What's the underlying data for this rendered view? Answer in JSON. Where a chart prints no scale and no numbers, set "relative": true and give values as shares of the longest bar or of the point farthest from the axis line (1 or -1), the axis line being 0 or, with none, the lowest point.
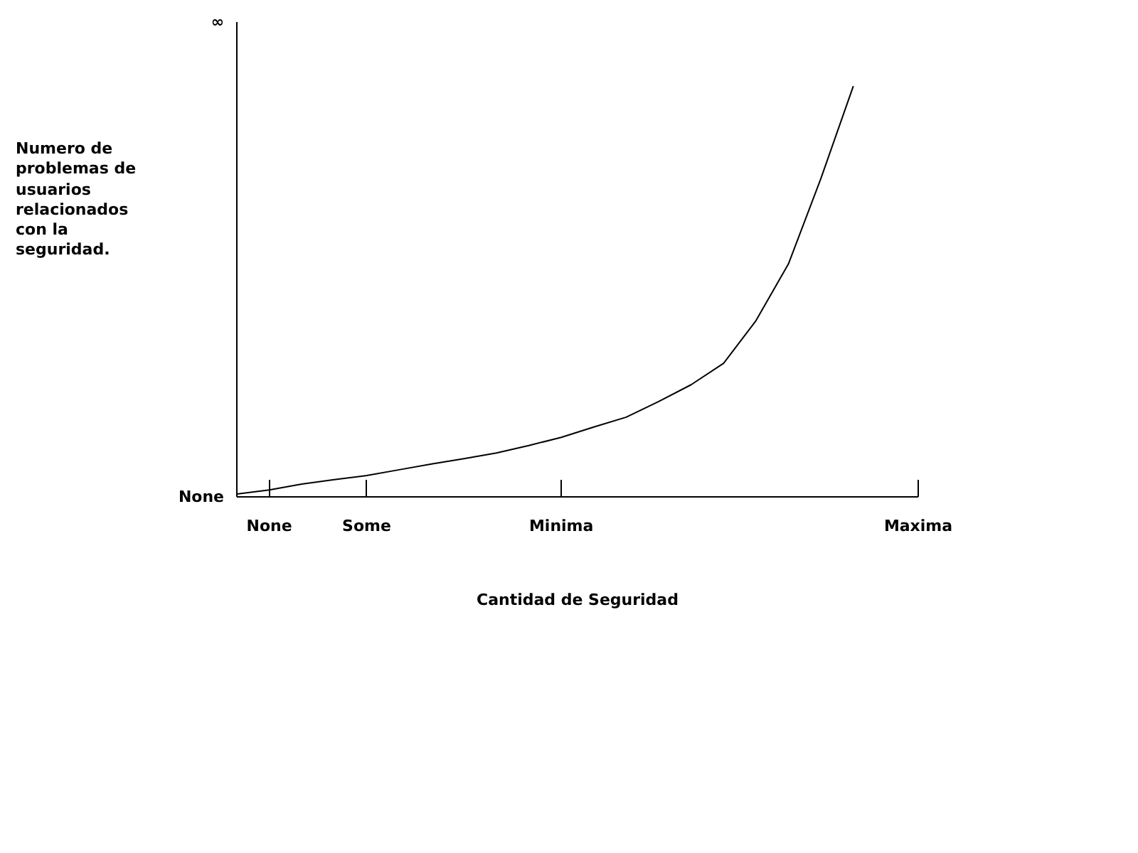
{
  "chart_data": {
    "type": "line",
    "relative": true,
    "xlabel": "Cantidad de Seguridad",
    "annotations": [
      "None",
      "∞",
      "Numero de\nproblemas de\nusuarios\nrelacionados\ncon la\nseguridad."
    ],
    "categories": [
      null,
      "None",
      null,
      null,
      "Some",
      null,
      null,
      null,
      null,
      null,
      "Minima",
      null,
      null,
      null,
      null,
      null,
      null,
      null,
      null,
      null,
      null,
      "Maxima"
    ],
    "values": [
      0.007,
      0.017,
      0.031,
      0.042,
      0.052,
      0.066,
      0.08,
      0.093,
      0.107,
      0.125,
      0.145,
      0.17,
      0.194,
      0.232,
      0.273,
      0.325,
      0.429,
      0.567,
      0.775,
      1,
      null,
      null
    ],
    "color": "#000000",
    "marker": "none",
    "line_style": "solid",
    "grid": false,
    "legend": false
  }
}
